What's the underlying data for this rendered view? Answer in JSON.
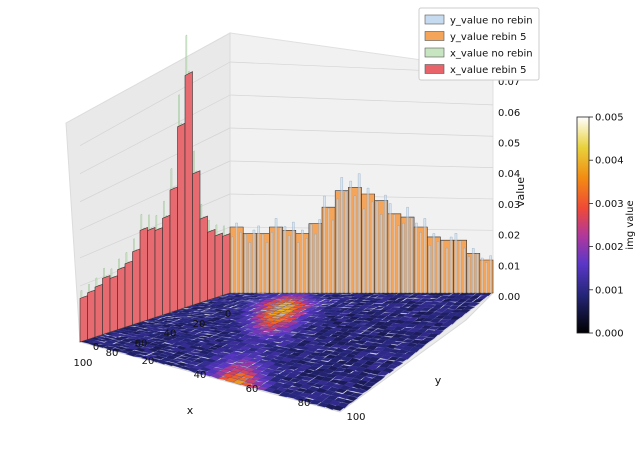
{
  "chart_data": {
    "type": "3d-bar-with-surface",
    "axes": {
      "x": {
        "label": "x",
        "ticks": [
          "0",
          "20",
          "40",
          "60",
          "80",
          "100"
        ],
        "range": [
          0,
          100
        ]
      },
      "y": {
        "label": "y",
        "ticks": [
          "0",
          "20",
          "40",
          "60",
          "80",
          "100"
        ],
        "range": [
          0,
          100
        ]
      },
      "z": {
        "label": "value",
        "ticks": [
          "0.00",
          "0.01",
          "0.02",
          "0.03",
          "0.04",
          "0.05",
          "0.06",
          "0.07"
        ],
        "range": [
          0,
          0.075
        ]
      }
    },
    "colorbar": {
      "label": "img value",
      "ticks": [
        "0.000",
        "0.001",
        "0.002",
        "0.003",
        "0.004",
        "0.005"
      ],
      "range": [
        0,
        0.005
      ],
      "colormap": "CMRmap"
    },
    "legend": {
      "placement": "top-right",
      "entries": [
        {
          "label": "y_value no rebin",
          "color": "#c6dbef"
        },
        {
          "label": "y_value rebin 5",
          "color": "#f5a55a"
        },
        {
          "label": "x_value no rebin",
          "color": "#c7e5c0"
        },
        {
          "label": "x_value rebin 5",
          "color": "#e8646a"
        }
      ]
    },
    "series": [
      {
        "name": "x_value rebin 5",
        "x": [
          2.5,
          7.5,
          12.5,
          17.5,
          22.5,
          27.5,
          32.5,
          37.5,
          42.5,
          47.5,
          52.5,
          57.5,
          62.5,
          67.5,
          72.5,
          77.5,
          82.5,
          87.5,
          92.5,
          97.5
        ],
        "values": [
          0.018,
          0.019,
          0.021,
          0.026,
          0.041,
          0.073,
          0.058,
          0.039,
          0.031,
          0.028,
          0.029,
          0.03,
          0.024,
          0.021,
          0.02,
          0.018,
          0.019,
          0.017,
          0.016,
          0.015
        ]
      },
      {
        "name": "y_value rebin 5",
        "y": [
          2.5,
          7.5,
          12.5,
          17.5,
          22.5,
          27.5,
          32.5,
          37.5,
          42.5,
          47.5,
          52.5,
          57.5,
          62.5,
          67.5,
          72.5,
          77.5,
          82.5,
          87.5,
          92.5,
          97.5
        ],
        "values": [
          0.02,
          0.018,
          0.018,
          0.02,
          0.019,
          0.018,
          0.021,
          0.026,
          0.031,
          0.032,
          0.03,
          0.028,
          0.024,
          0.023,
          0.02,
          0.017,
          0.016,
          0.016,
          0.012,
          0.01
        ]
      }
    ],
    "surface": {
      "hot_band": {
        "x": [
          20,
          100
        ],
        "y_center": [
          25,
          60
        ],
        "peak_value": 0.0032
      }
    }
  }
}
